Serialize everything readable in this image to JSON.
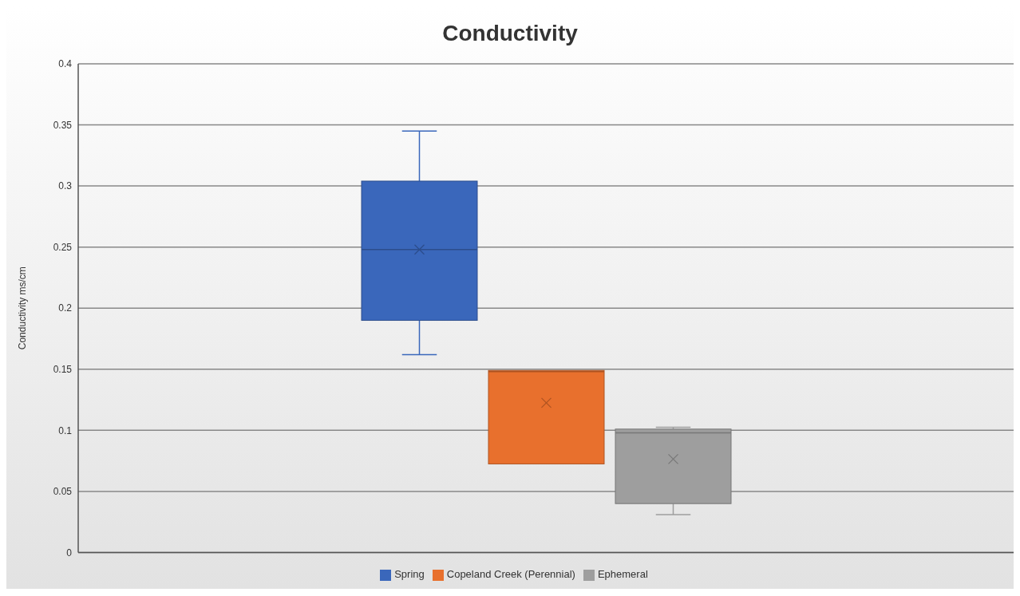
{
  "chart_data": {
    "type": "box",
    "title": "Conductivity",
    "ylabel": "Conductivity ms/cm",
    "categories": [
      null
    ],
    "series": [
      {
        "name": "Spring",
        "color": "#3a67bb",
        "boxes": [
          {
            "low": 0.162,
            "q1": 0.19,
            "median": 0.248,
            "q3": 0.304,
            "high": 0.345,
            "mean": 0.248
          }
        ]
      },
      {
        "name": "Copeland Creek (Perennial)",
        "color": "#e8702d",
        "boxes": [
          {
            "low": 0.0725,
            "q1": 0.0725,
            "median": 0.148,
            "q3": 0.149,
            "high": 0.149,
            "mean": 0.1225
          }
        ]
      },
      {
        "name": "Ephemeral",
        "color": "#9e9e9e",
        "boxes": [
          {
            "low": 0.031,
            "q1": 0.04,
            "median": 0.098,
            "q3": 0.101,
            "high": 0.1025,
            "mean": 0.0765
          }
        ]
      }
    ],
    "ylim": [
      0,
      0.4
    ],
    "yticks": [
      0,
      0.05,
      0.1,
      0.15,
      0.2,
      0.25,
      0.3,
      0.35,
      0.4
    ],
    "grid": "y",
    "legend": "bottom",
    "tick_labels": "y"
  }
}
